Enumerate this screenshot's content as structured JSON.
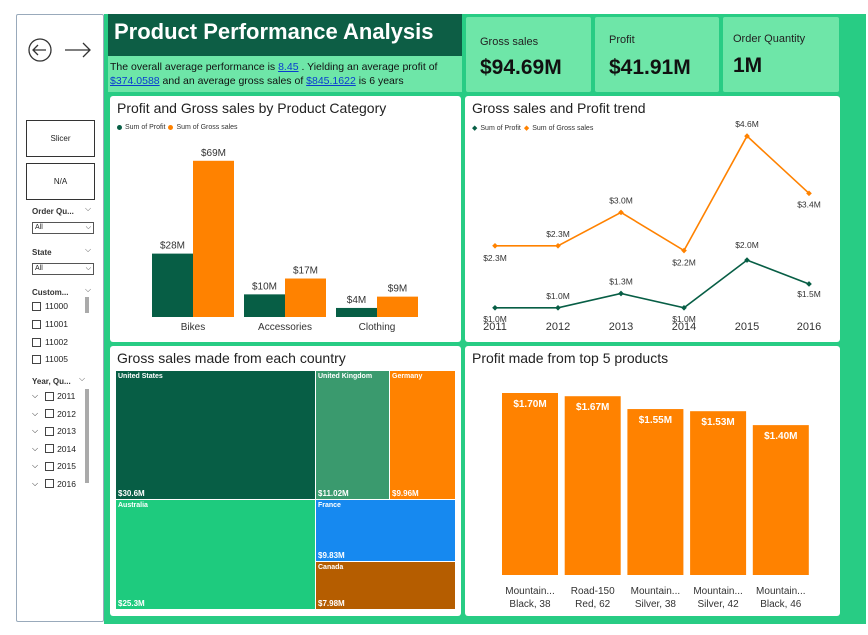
{
  "header": {
    "title": "Product Performance Analysis",
    "summary": {
      "t1": "The overall average performance is ",
      "performance": "8.45",
      "t2": " . Yielding an average profit of ",
      "avg_profit": "$374.0588",
      "t3": " and an average gross sales of ",
      "avg_gross": "$845.1622",
      "t4": " is 6 years"
    }
  },
  "kpis": [
    {
      "label": "Gross sales",
      "value": "$94.69M"
    },
    {
      "label": "Profit",
      "value": "$41.91M"
    },
    {
      "label": "Order Quantity",
      "value": "1M"
    }
  ],
  "sidebar": {
    "nav_back": "←",
    "nav_forward": "→",
    "slicer_label": "Slicer",
    "na_label": "N/A",
    "order_qty_label": "Order Qu...",
    "order_qty_value": "All",
    "state_label": "State",
    "state_value": "All",
    "customer_label": "Custom...",
    "customers": [
      "11000",
      "11001",
      "11002",
      "11005"
    ],
    "year_label": "Year, Qu...",
    "years": [
      "2011",
      "2012",
      "2013",
      "2014",
      "2015",
      "2016"
    ]
  },
  "colors": {
    "profit": "#075e45",
    "gross": "#ff8200",
    "bg": "#28cc84",
    "kpi": "#6ee6a8"
  },
  "chart_data": [
    {
      "type": "bar",
      "title": "Profit and Gross sales by Product Category",
      "categories": [
        "Bikes",
        "Accessories",
        "Clothing"
      ],
      "series": [
        {
          "name": "Sum of Profit",
          "values": [
            28,
            10,
            4
          ],
          "labels": [
            "$28M",
            "$10M",
            "$4M"
          ]
        },
        {
          "name": "Sum of Gross sales",
          "values": [
            69,
            17,
            9
          ],
          "labels": [
            "$69M",
            "$17M",
            "$9M"
          ]
        }
      ],
      "ylim": [
        0,
        72
      ]
    },
    {
      "type": "line",
      "title": "Gross sales and Profit trend",
      "x": [
        "2011",
        "2012",
        "2013",
        "2014",
        "2015",
        "2016"
      ],
      "series": [
        {
          "name": "Sum of Profit",
          "values": [
            1.0,
            1.0,
            1.3,
            1.0,
            2.0,
            1.5
          ],
          "labels": [
            "$1.0M",
            "$1.0M",
            "$1.3M",
            "$1.0M",
            "$2.0M",
            "$1.5M"
          ]
        },
        {
          "name": "Sum of Gross sales",
          "values": [
            2.3,
            2.3,
            3.0,
            2.2,
            4.6,
            3.4
          ],
          "labels": [
            "$2.3M",
            "$2.3M",
            "$3.0M",
            "$2.2M",
            "$4.6M",
            "$3.4M"
          ]
        }
      ],
      "ylim": [
        0,
        5
      ]
    },
    {
      "type": "heatmap",
      "subtype": "treemap",
      "title": "Gross sales made from each country",
      "items": [
        {
          "name": "United States",
          "value": 30.6,
          "label": "$30.6M",
          "color": "#075e45"
        },
        {
          "name": "Australia",
          "value": 25.3,
          "label": "$25.3M",
          "color": "#1ecb7e"
        },
        {
          "name": "United Kingdom",
          "value": 11.02,
          "label": "$11.02M",
          "color": "#3a9a6e"
        },
        {
          "name": "Germany",
          "value": 9.96,
          "label": "$9.96M",
          "color": "#ff8200"
        },
        {
          "name": "France",
          "value": 9.83,
          "label": "$9.83M",
          "color": "#1689f0"
        },
        {
          "name": "Canada",
          "value": 7.98,
          "label": "$7.98M",
          "color": "#b55d00"
        }
      ]
    },
    {
      "type": "bar",
      "title": "Profit made from top 5 products",
      "categories": [
        {
          "l1": "Mountain...",
          "l2": "Black, 38"
        },
        {
          "l1": "Road-150",
          "l2": "Red, 62"
        },
        {
          "l1": "Mountain...",
          "l2": "Silver, 38"
        },
        {
          "l1": "Mountain...",
          "l2": "Silver, 42"
        },
        {
          "l1": "Mountain...",
          "l2": "Black, 46"
        }
      ],
      "values": [
        1.7,
        1.67,
        1.55,
        1.53,
        1.4
      ],
      "labels": [
        "$1.70M",
        "$1.67M",
        "$1.55M",
        "$1.53M",
        "$1.40M"
      ],
      "ylim": [
        0,
        1.8
      ]
    }
  ]
}
